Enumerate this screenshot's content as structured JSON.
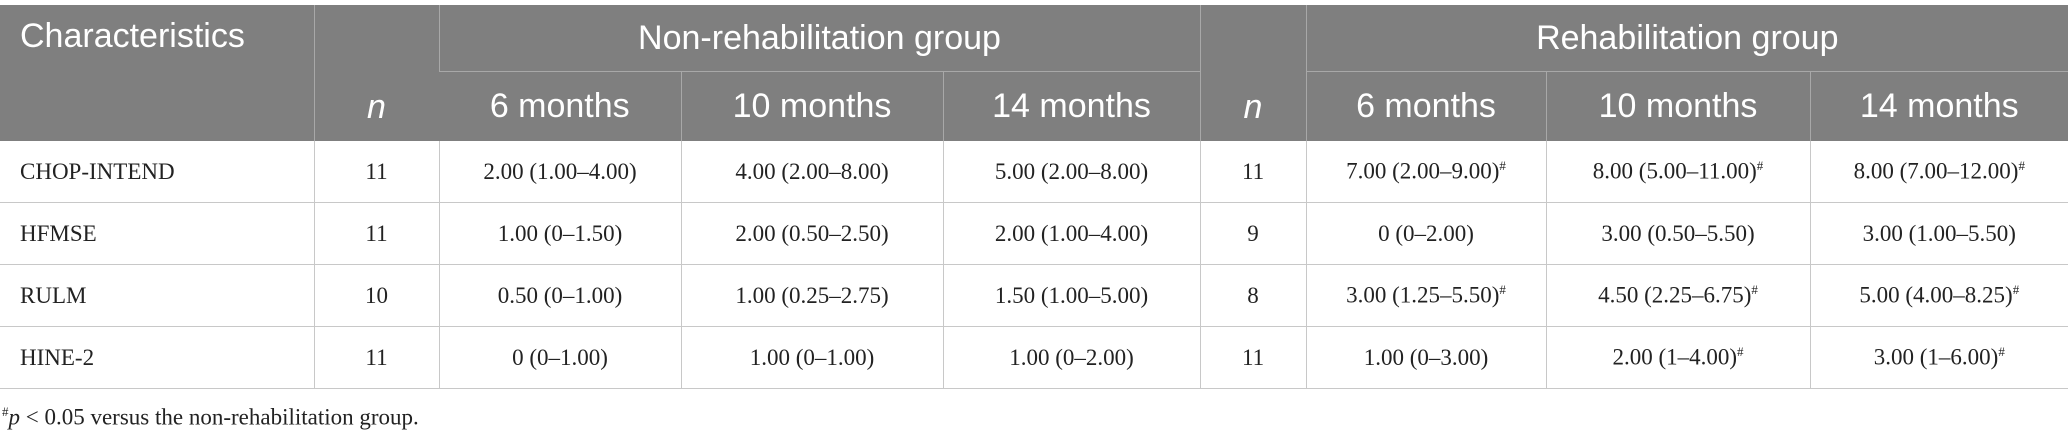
{
  "table": {
    "header": {
      "characteristics": "Characteristics",
      "groups": [
        {
          "name": "Non-rehabilitation group",
          "n": "n",
          "timepoints": [
            "6 months",
            "10 months",
            "14 months"
          ]
        },
        {
          "name": "Rehabilitation group",
          "n": "n",
          "timepoints": [
            "6 months",
            "10 months",
            "14 months"
          ]
        }
      ]
    },
    "rows": [
      {
        "label": "CHOP-INTEND",
        "cells": [
          11,
          "2.00 (1.00–4.00)",
          "4.00 (2.00–8.00)",
          "5.00 (2.00–8.00)",
          11,
          {
            "text": "7.00 (2.00–9.00)",
            "mark": "#"
          },
          {
            "text": "8.00 (5.00–11.00)",
            "mark": "#"
          },
          {
            "text": "8.00 (7.00–12.00)",
            "mark": "#"
          }
        ]
      },
      {
        "label": "HFMSE",
        "cells": [
          11,
          "1.00 (0–1.50)",
          "2.00 (0.50–2.50)",
          "2.00 (1.00–4.00)",
          9,
          "0 (0–2.00)",
          "3.00 (0.50–5.50)",
          "3.00 (1.00–5.50)"
        ]
      },
      {
        "label": "RULM",
        "cells": [
          10,
          "0.50 (0–1.00)",
          "1.00 (0.25–2.75)",
          "1.50 (1.00–5.00)",
          8,
          {
            "text": "3.00 (1.25–5.50)",
            "mark": "#"
          },
          {
            "text": "4.50 (2.25–6.75)",
            "mark": "#"
          },
          {
            "text": "5.00 (4.00–8.25)",
            "mark": "#"
          }
        ]
      },
      {
        "label": "HINE-2",
        "cells": [
          11,
          "0 (0–1.00)",
          "1.00 (0–1.00)",
          "1.00 (0–2.00)",
          11,
          "1.00 (0–3.00)",
          {
            "text": "2.00 (1–4.00)",
            "mark": "#"
          },
          {
            "text": "3.00 (1–6.00)",
            "mark": "#"
          }
        ]
      }
    ],
    "footnote": {
      "mark": "#",
      "italic": "p",
      "text": " < 0.05 versus the non-rehabilitation group."
    }
  }
}
